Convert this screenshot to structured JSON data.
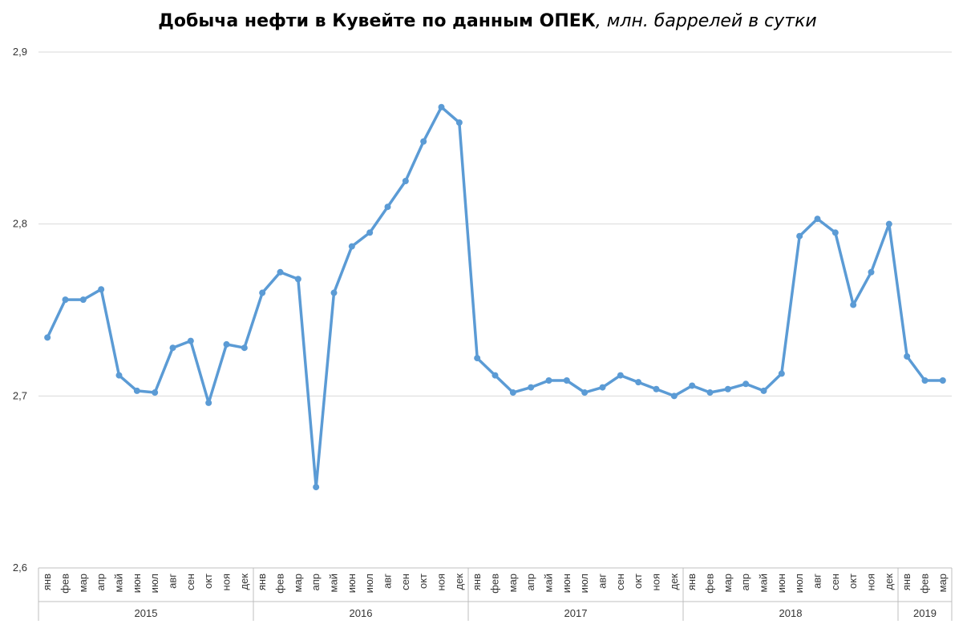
{
  "chart_data": {
    "type": "line",
    "title": "Добыча нефти в Кувейте по данным ОПЕК",
    "subtitle": ", млн. баррелей в сутки",
    "xlabel": "",
    "ylabel": "",
    "ylim": [
      2.6,
      2.9
    ],
    "yticks": [
      "2,6",
      "2,7",
      "2,8",
      "2,9"
    ],
    "grid": "horizontal",
    "legend": "none",
    "color": "#5b9bd5",
    "groups": [
      {
        "year": "2015",
        "months": [
          "янв",
          "фев",
          "мар",
          "апр",
          "май",
          "июн",
          "июл",
          "авг",
          "сен",
          "окт",
          "ноя",
          "дек"
        ]
      },
      {
        "year": "2016",
        "months": [
          "янв",
          "фев",
          "мар",
          "апр",
          "май",
          "июн",
          "июл",
          "авг",
          "сен",
          "окт",
          "ноя",
          "дек"
        ]
      },
      {
        "year": "2017",
        "months": [
          "янв",
          "фев",
          "мар",
          "апр",
          "май",
          "июн",
          "июл",
          "авг",
          "сен",
          "окт",
          "ноя",
          "дек"
        ]
      },
      {
        "year": "2018",
        "months": [
          "янв",
          "фев",
          "мар",
          "апр",
          "май",
          "июн",
          "июл",
          "авг",
          "сен",
          "окт",
          "ноя",
          "дек"
        ]
      },
      {
        "year": "2019",
        "months": [
          "янв",
          "фев",
          "мар"
        ]
      }
    ],
    "series": [
      {
        "values": [
          2.734,
          2.756,
          2.756,
          2.762,
          2.712,
          2.703,
          2.702,
          2.728,
          2.732,
          2.696,
          2.73,
          2.728,
          2.76,
          2.772,
          2.768,
          2.647,
          2.76,
          2.787,
          2.795,
          2.81,
          2.825,
          2.848,
          2.868,
          2.859,
          2.722,
          2.712,
          2.702,
          2.705,
          2.709,
          2.709,
          2.702,
          2.705,
          2.712,
          2.708,
          2.704,
          2.7,
          2.706,
          2.702,
          2.704,
          2.707,
          2.703,
          2.713,
          2.793,
          2.803,
          2.795,
          2.753,
          2.772,
          2.8,
          2.723,
          2.709,
          2.709
        ]
      }
    ]
  }
}
